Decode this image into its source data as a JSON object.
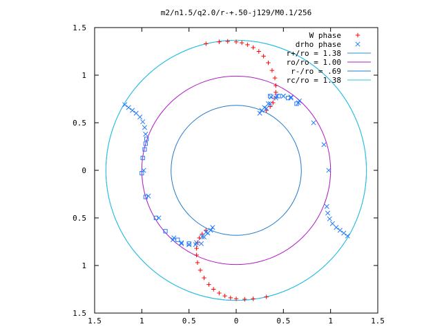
{
  "chart_data": {
    "type": "scatter",
    "title": "m2/n1.5/q2.0/r-+.50-j129/M0.1/256",
    "xlabel": "",
    "ylabel": "",
    "xlim": [
      -1.5,
      1.5
    ],
    "ylim": [
      -1.5,
      1.5
    ],
    "x_tick_values": [
      -1.5,
      -1,
      -0.5,
      0,
      0.5,
      1,
      1.5
    ],
    "x_tick_labels": [
      "1.5",
      "1",
      "0.5",
      "0",
      "0.5",
      "1",
      "1.5"
    ],
    "y_tick_values": [
      1.5,
      1,
      0.5,
      0,
      -0.5,
      -1,
      -1.5
    ],
    "y_tick_labels": [
      "1.5",
      "1",
      "0.5",
      "0",
      "0.5",
      "1",
      "1.5"
    ],
    "grid": false,
    "legend_position": "top-right",
    "series": [
      {
        "name": "W phase",
        "kind": "points",
        "marker": "plus",
        "color": "#ff0000",
        "x": [
          -0.32,
          -0.18,
          -0.09,
          0.0,
          0.06,
          0.12,
          0.18,
          0.24,
          0.29,
          0.34,
          0.38,
          0.41,
          0.42,
          0.42,
          0.41,
          0.39,
          0.36,
          0.32,
          0.32,
          0.18,
          0.09,
          0.0,
          -0.06,
          -0.12,
          -0.18,
          -0.24,
          -0.29,
          -0.34,
          -0.38,
          -0.41,
          -0.42,
          -0.42,
          -0.41,
          -0.39,
          -0.36,
          -0.32
        ],
        "y": [
          1.33,
          1.35,
          1.355,
          1.35,
          1.34,
          1.32,
          1.29,
          1.25,
          1.2,
          1.13,
          1.05,
          0.97,
          0.89,
          0.82,
          0.76,
          0.71,
          0.67,
          0.63,
          -1.33,
          -1.35,
          -1.355,
          -1.35,
          -1.34,
          -1.32,
          -1.29,
          -1.25,
          -1.2,
          -1.13,
          -1.05,
          -0.97,
          -0.89,
          -0.82,
          -0.76,
          -0.71,
          -0.67,
          -0.63
        ]
      },
      {
        "name": "drho phase",
        "kind": "points",
        "marker": "cross",
        "color": "#1f78ff",
        "x": [
          -1.18,
          -1.14,
          -1.1,
          -1.06,
          -1.02,
          -0.99,
          -0.97,
          -0.96,
          -0.37,
          -0.43,
          -0.5,
          -0.58,
          -0.67,
          -0.34,
          -0.3,
          -0.27,
          -0.25,
          0.32,
          0.36,
          0.42,
          0.5,
          0.58,
          0.66,
          0.82,
          0.93,
          0.98,
          1.18,
          1.14,
          1.1,
          1.06,
          1.02,
          0.99,
          0.97,
          0.96,
          0.37,
          0.43,
          0.5,
          0.58,
          0.67,
          0.34,
          0.3,
          0.27,
          0.25,
          -0.32,
          -0.36,
          -0.42,
          -0.5,
          -0.58,
          -0.66,
          -0.82,
          -0.93,
          -0.98
        ],
        "y": [
          0.69,
          0.66,
          0.63,
          0.6,
          0.56,
          0.51,
          0.45,
          0.38,
          -0.77,
          -0.78,
          -0.78,
          -0.76,
          -0.73,
          -0.7,
          -0.66,
          -0.63,
          -0.6,
          0.65,
          0.7,
          0.76,
          0.78,
          0.77,
          0.71,
          0.5,
          0.27,
          0.0,
          -0.69,
          -0.66,
          -0.63,
          -0.6,
          -0.56,
          -0.51,
          -0.45,
          -0.38,
          0.77,
          0.78,
          0.78,
          0.76,
          0.73,
          0.7,
          0.66,
          0.63,
          0.6,
          -0.65,
          -0.7,
          -0.76,
          -0.78,
          -0.77,
          -0.71,
          -0.5,
          -0.27,
          0.0
        ]
      },
      {
        "name": "",
        "kind": "points",
        "marker": "square",
        "color": "#1f78ff",
        "x": [
          -0.95,
          -0.96,
          -0.97,
          -0.99,
          -1.0,
          -0.96,
          -0.85,
          -0.75,
          -0.62,
          -0.5,
          0.36,
          0.45,
          0.55,
          0.64
        ],
        "y": [
          0.33,
          0.28,
          0.22,
          0.13,
          -0.03,
          -0.28,
          -0.5,
          -0.64,
          -0.73,
          -0.77,
          0.78,
          0.78,
          0.76,
          0.7
        ]
      },
      {
        "name": "r+/ro = 1.38",
        "kind": "circle",
        "radius": 1.38,
        "color": "#1f8fc9"
      },
      {
        "name": "ro/ro = 1.00",
        "kind": "circle",
        "radius": 1.0,
        "color": "#b01ac4"
      },
      {
        "name": "r-/ro = .69",
        "kind": "circle",
        "radius": 0.69,
        "color": "#1f78c9"
      },
      {
        "name": "rc/ro = 1.38",
        "kind": "circle",
        "radius": 1.38,
        "color": "#27c4e6"
      }
    ]
  }
}
